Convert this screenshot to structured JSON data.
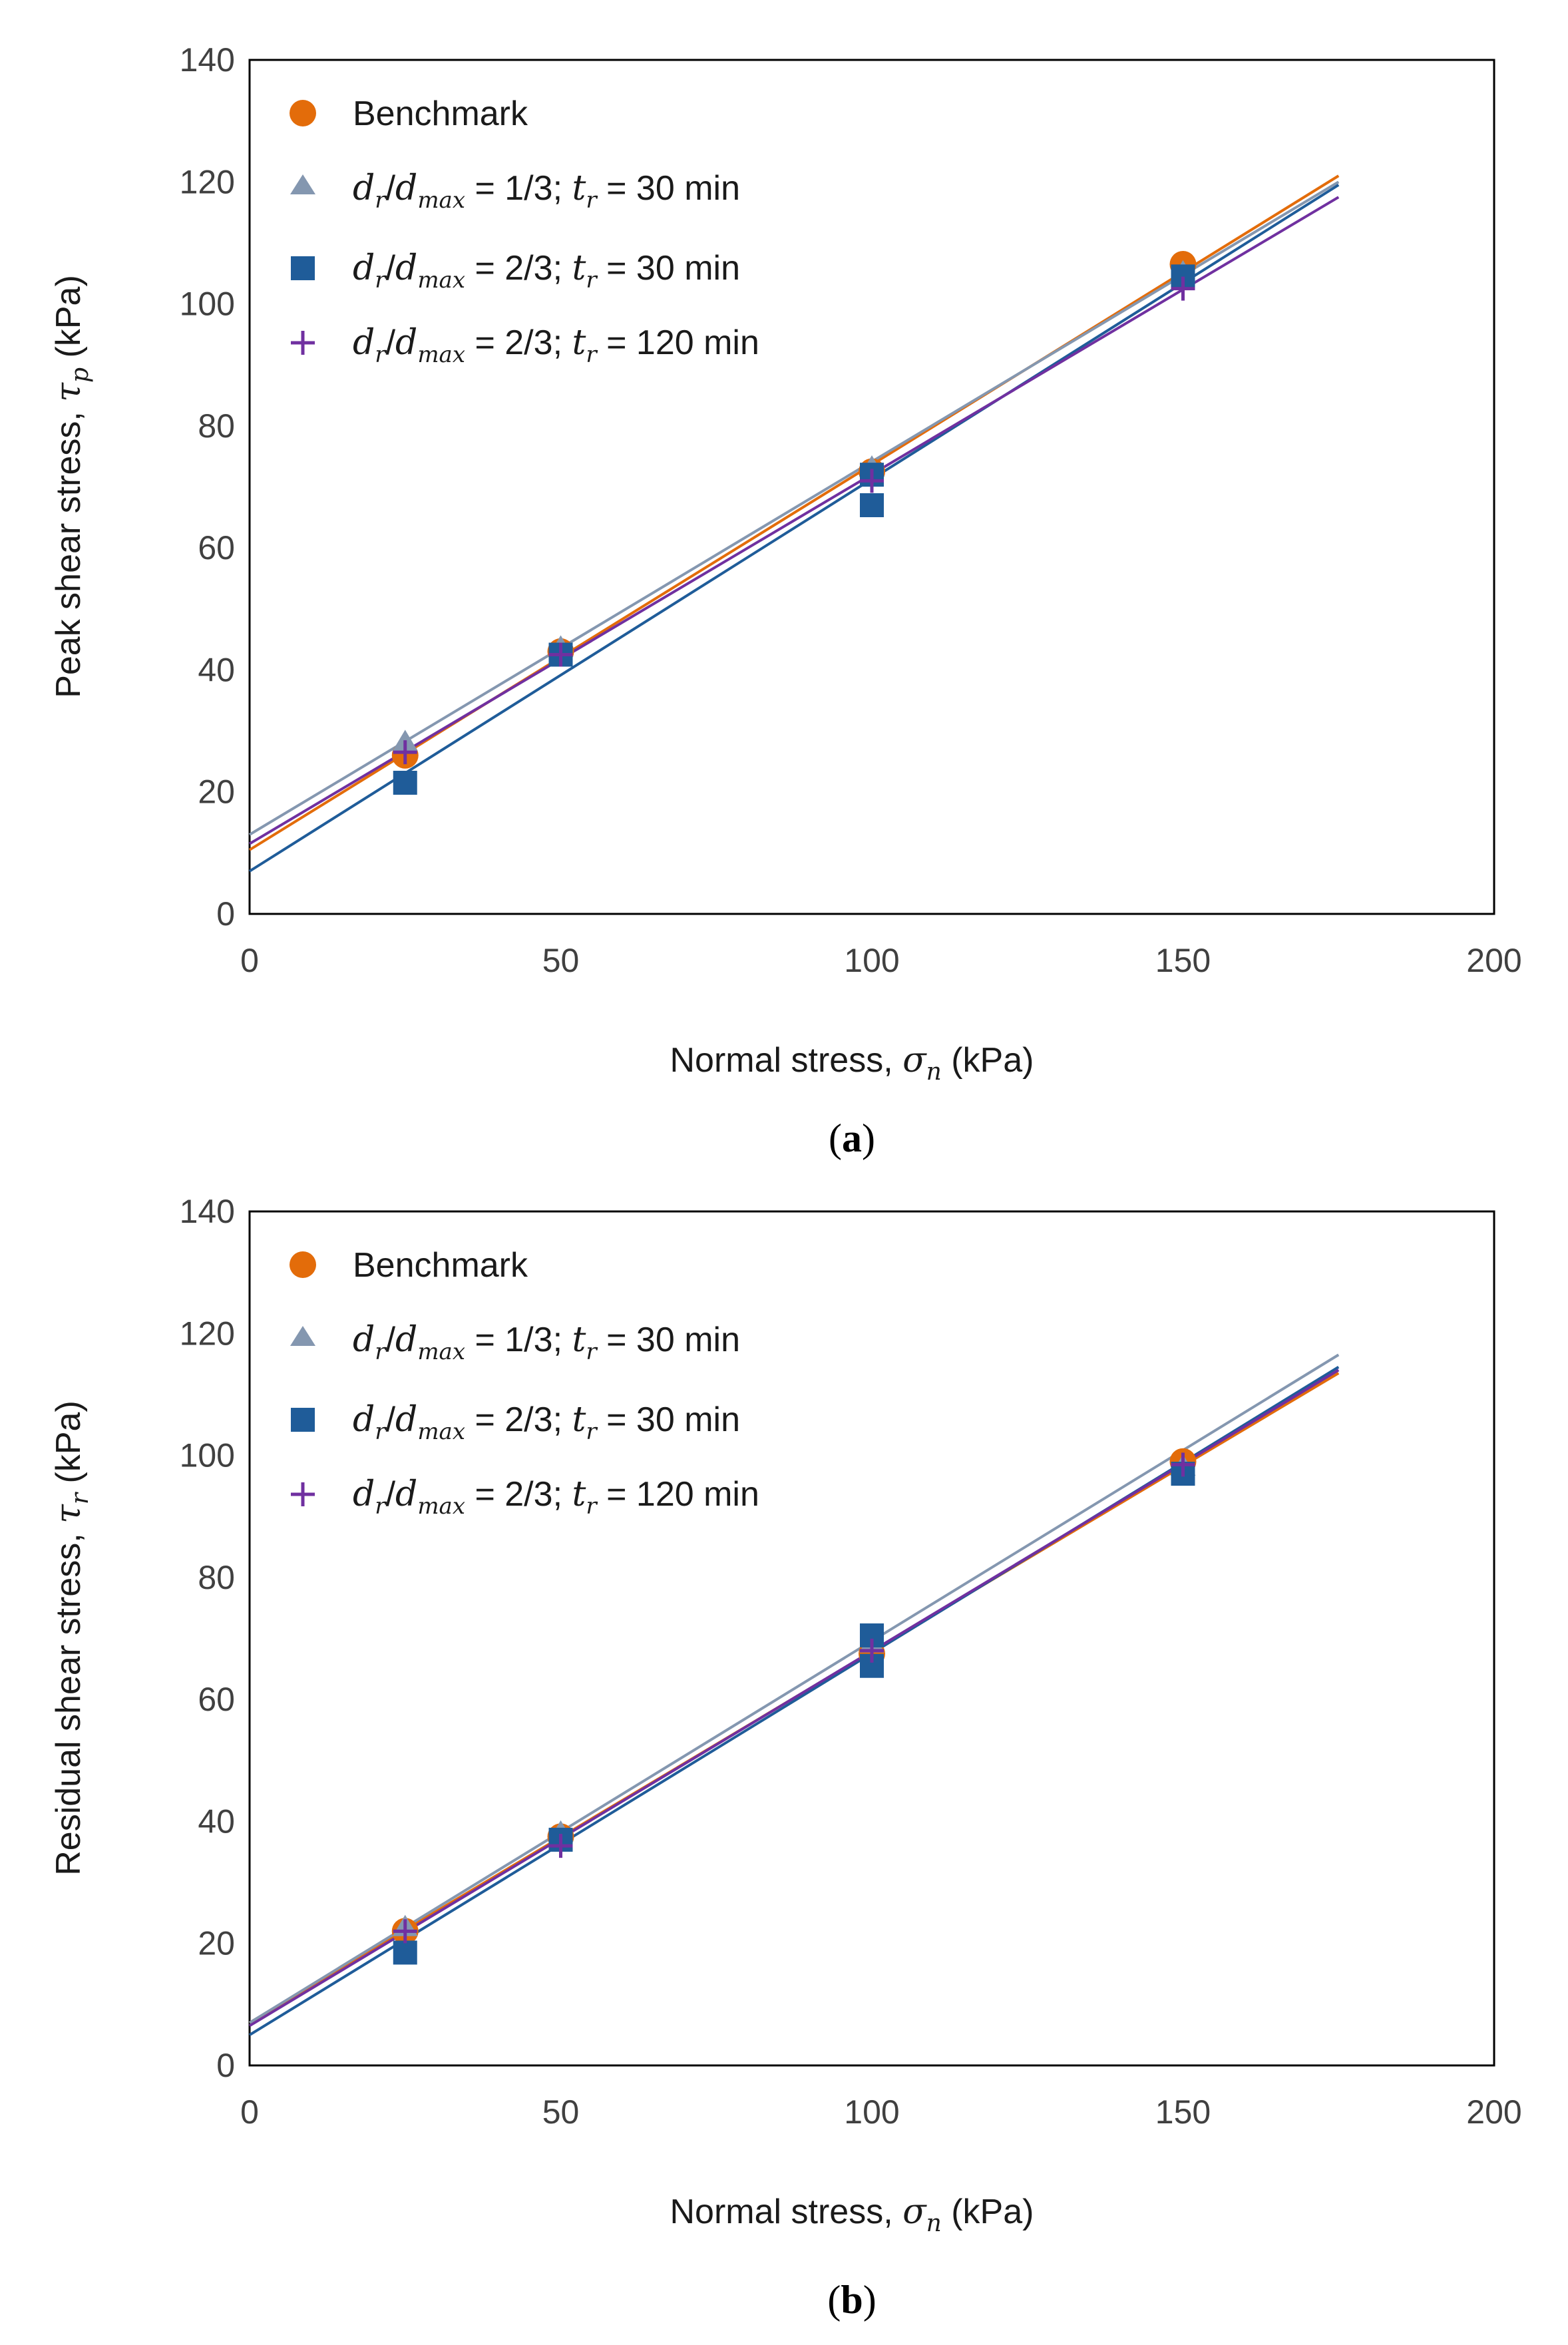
{
  "chart_data": [
    {
      "type": "scatter",
      "panel_label": "a",
      "xlabel": {
        "text": "Normal stress, ",
        "symbol": "σ",
        "subscript": "n",
        "unit": " (kPa)"
      },
      "ylabel": {
        "text": "Peak shear stress, ",
        "symbol": "τ",
        "subscript": "p",
        "unit": " (kPa)"
      },
      "xlim": [
        0,
        200
      ],
      "ylim": [
        0,
        140
      ],
      "xticks": [
        0,
        50,
        100,
        150,
        200
      ],
      "yticks": [
        0,
        20,
        40,
        60,
        80,
        100,
        120,
        140
      ],
      "grid": false,
      "legend_position": "top-left",
      "series": [
        {
          "name": "Benchmark",
          "marker": "circle",
          "color": "#e36c0a",
          "points": [
            [
              25,
              26
            ],
            [
              50,
              43
            ],
            [
              100,
              72.5
            ],
            [
              150,
              106.5
            ]
          ],
          "fit": {
            "x": [
              0,
              175
            ],
            "y": [
              10.5,
              121
            ]
          }
        },
        {
          "name": "dr/dmax = 1/3; tr = 30 min",
          "marker": "triangle",
          "color": "#8497b0",
          "points": [
            [
              25,
              28
            ],
            [
              50,
              43.5
            ],
            [
              100,
              73
            ],
            [
              150,
              105
            ]
          ],
          "fit": {
            "x": [
              0,
              175
            ],
            "y": [
              13,
              120
            ]
          }
        },
        {
          "name": "dr/dmax = 2/3; tr = 30 min",
          "marker": "square",
          "color": "#1f5c99",
          "points": [
            [
              25,
              21.5
            ],
            [
              50,
              42.5
            ],
            [
              100,
              67
            ],
            [
              100,
              72
            ],
            [
              150,
              104.5
            ]
          ],
          "fit": {
            "x": [
              0,
              175
            ],
            "y": [
              7,
              119.5
            ]
          }
        },
        {
          "name": "dr/dmax = 2/3; tr = 120 min",
          "marker": "plus",
          "color": "#7030a0",
          "points": [
            [
              25,
              26.5
            ],
            [
              50,
              42.5
            ],
            [
              100,
              71
            ],
            [
              150,
              102.5
            ]
          ],
          "fit": {
            "x": [
              0,
              175
            ],
            "y": [
              11.5,
              117.5
            ]
          }
        }
      ]
    },
    {
      "type": "scatter",
      "panel_label": "b",
      "xlabel": {
        "text": "Normal stress, ",
        "symbol": "σ",
        "subscript": "n",
        "unit": " (kPa)"
      },
      "ylabel": {
        "text": "Residual shear stress, ",
        "symbol": "τ",
        "subscript": "r",
        "unit": " (kPa)"
      },
      "xlim": [
        0,
        200
      ],
      "ylim": [
        0,
        140
      ],
      "xticks": [
        0,
        50,
        100,
        150,
        200
      ],
      "yticks": [
        0,
        20,
        40,
        60,
        80,
        100,
        120,
        140
      ],
      "grid": false,
      "legend_position": "top-left",
      "series": [
        {
          "name": "Benchmark",
          "marker": "circle",
          "color": "#e36c0a",
          "points": [
            [
              25,
              22
            ],
            [
              50,
              37.5
            ],
            [
              100,
              67.5
            ],
            [
              150,
              99
            ]
          ],
          "fit": {
            "x": [
              0,
              175
            ],
            "y": [
              7,
              113.5
            ]
          }
        },
        {
          "name": "dr/dmax = 1/3; tr = 30 min",
          "marker": "triangle",
          "color": "#8497b0",
          "points": [
            [
              25,
              22.5
            ],
            [
              50,
              38
            ],
            [
              100,
              69
            ],
            [
              150,
              98
            ]
          ],
          "fit": {
            "x": [
              0,
              175
            ],
            "y": [
              7,
              116.5
            ]
          }
        },
        {
          "name": "dr/dmax = 2/3; tr = 30 min",
          "marker": "square",
          "color": "#1f5c99",
          "points": [
            [
              25,
              18.5
            ],
            [
              50,
              37
            ],
            [
              100,
              65.5
            ],
            [
              100,
              70.5
            ],
            [
              150,
              97
            ]
          ],
          "fit": {
            "x": [
              0,
              175
            ],
            "y": [
              5,
              114.5
            ]
          }
        },
        {
          "name": "dr/dmax = 2/3; tr = 120 min",
          "marker": "plus",
          "color": "#7030a0",
          "points": [
            [
              25,
              22
            ],
            [
              50,
              36
            ],
            [
              100,
              68
            ],
            [
              150,
              98.5
            ]
          ],
          "fit": {
            "x": [
              0,
              175
            ],
            "y": [
              6.5,
              114
            ]
          }
        }
      ]
    }
  ],
  "legend_parts": {
    "d": "d",
    "r": "r",
    "max": "max",
    "t": "t",
    "eq": " = ",
    "sep": "; ",
    "min": " min"
  }
}
